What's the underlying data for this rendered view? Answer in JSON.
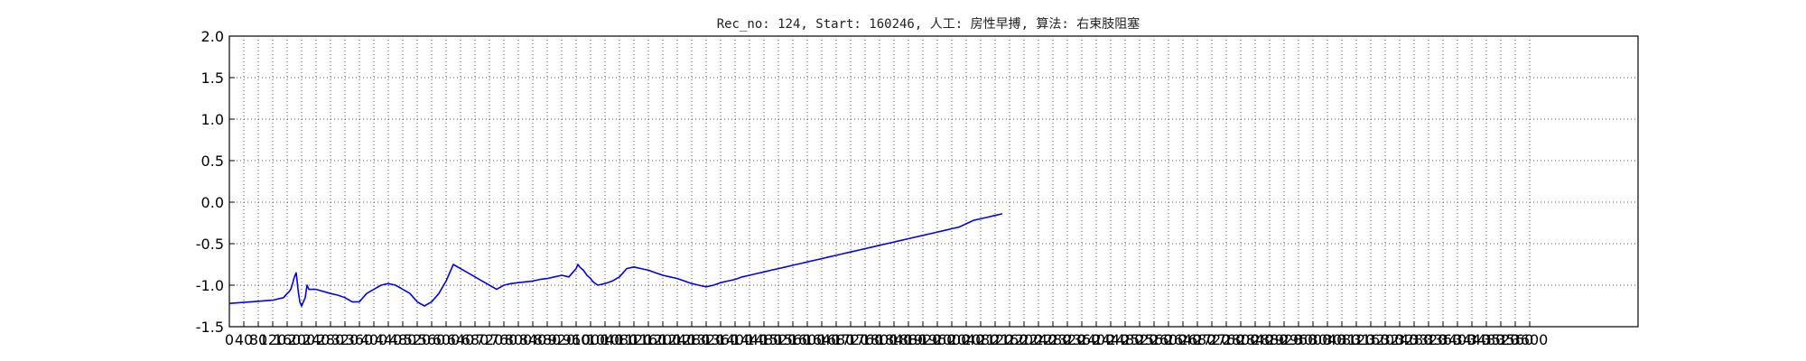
{
  "chart_data": {
    "type": "line",
    "title": "Rec_no: 124, Start: 160246, 人工: 房性早搏, 算法: 右束肢阻塞",
    "xlabel": "",
    "ylabel": "",
    "xlim": [
      0,
      3900
    ],
    "ylim": [
      -1.5,
      2.0
    ],
    "grid": true,
    "ytick_labels": [
      "2.0",
      "1.5",
      "1.0",
      "0.5",
      "0.0",
      "-0.5",
      "-1.0",
      "-1.5"
    ],
    "yticks": [
      2.0,
      1.5,
      1.0,
      0.5,
      0.0,
      -0.5,
      -1.0,
      -1.5
    ],
    "xticks": [
      0,
      40,
      80,
      120,
      160,
      200,
      240,
      280,
      320,
      360,
      400,
      440,
      480,
      520,
      560,
      600,
      640,
      680,
      720,
      760,
      800,
      840,
      880,
      920,
      960,
      1000,
      1040,
      1080,
      1120,
      1160,
      1200,
      1240,
      1280,
      1320,
      1360,
      1400,
      1440,
      1480,
      1520,
      1560,
      1600,
      1640,
      1680,
      1720,
      1760,
      1800,
      1840,
      1880,
      1920,
      1960,
      2000,
      2040,
      2080,
      2120,
      2160,
      2200,
      2240,
      2280,
      2320,
      2360,
      2400,
      2440,
      2480,
      2520,
      2560,
      2600,
      2640,
      2680,
      2720,
      2760,
      2800,
      2840,
      2880,
      2920,
      2960,
      3000,
      3040,
      3080,
      3120,
      3160,
      3200,
      3240,
      3280,
      3320,
      3360,
      3400,
      3440,
      3480,
      3520,
      3560,
      3600
    ],
    "xtick_labels": [
      "0",
      "40",
      "80",
      "120",
      "160",
      "200",
      "240",
      "280",
      "320",
      "360",
      "400",
      "440",
      "480",
      "520",
      "560",
      "600",
      "640",
      "680",
      "720",
      "760",
      "800",
      "840",
      "880",
      "920",
      "960",
      "1000",
      "1040",
      "1080",
      "1120",
      "1160",
      "1200",
      "1240",
      "1280",
      "1320",
      "1360",
      "1400",
      "1440",
      "1480",
      "1520",
      "1560",
      "1600",
      "1640",
      "1680",
      "1720",
      "1760",
      "1800",
      "1840",
      "1880",
      "1920",
      "1960",
      "2000",
      "2040",
      "2080",
      "2120",
      "2160",
      "2200",
      "2240",
      "2280",
      "2320",
      "2360",
      "2400",
      "2440",
      "2480",
      "2520",
      "2560",
      "2600",
      "2640",
      "2680",
      "2720",
      "2760",
      "2800",
      "2840",
      "2880",
      "2920",
      "2960",
      "3000",
      "3040",
      "3080",
      "3120",
      "3160",
      "3200",
      "3240",
      "3280",
      "3320",
      "3360",
      "3400",
      "3440",
      "3480",
      "3520",
      "3560",
      "3600"
    ],
    "colors": {
      "normal": "#0000ff",
      "highlight": "#ff0000",
      "grid": "#555555"
    },
    "series": [
      {
        "color": "#0000ff",
        "x": [
          0,
          60,
          120,
          150,
          160,
          165,
          170,
          175,
          180,
          185,
          190,
          195,
          200,
          205,
          210,
          215,
          220,
          240,
          280,
          300,
          320,
          340,
          360,
          380,
          400,
          420,
          440,
          460,
          480,
          500,
          520,
          540,
          560,
          580,
          600,
          620,
          640,
          660,
          680,
          700,
          720,
          740,
          760,
          780,
          800,
          820,
          840,
          860,
          880,
          900,
          920,
          940,
          950,
          960,
          965,
          970,
          975,
          980,
          985,
          990,
          995,
          1000,
          1005,
          1010,
          1020,
          1040,
          1060,
          1080,
          1100,
          1120,
          1140,
          1160,
          1180,
          1200,
          1220,
          1240,
          1260,
          1280,
          1300,
          1320,
          1340,
          1360,
          1380,
          1400,
          1420,
          1440,
          1460,
          1480,
          1500,
          1520,
          1540,
          1560,
          1580,
          1600,
          1620,
          1640,
          1660,
          1680,
          1700,
          1720,
          1740,
          1760,
          1780,
          1800,
          1820,
          1840,
          1860,
          1880,
          1900,
          1920,
          1940,
          1960,
          1980,
          2000,
          2020,
          2030,
          2040,
          2050,
          2060,
          2080,
          2100,
          2120,
          2140
        ],
        "y": [
          -1.22,
          -1.2,
          -1.18,
          -1.15,
          -1.1,
          -1.08,
          -1.05,
          -0.98,
          -0.9,
          -0.85,
          -1.05,
          -1.2,
          -1.25,
          -1.2,
          -1.15,
          -1.0,
          -1.05,
          -1.05,
          -1.1,
          -1.12,
          -1.15,
          -1.2,
          -1.2,
          -1.1,
          -1.05,
          -1.0,
          -0.98,
          -1.0,
          -1.05,
          -1.1,
          -1.2,
          -1.25,
          -1.2,
          -1.1,
          -0.95,
          -0.75,
          -0.8,
          -0.85,
          -0.9,
          -0.95,
          -1.0,
          -1.05,
          -1.0,
          -0.98,
          -0.97,
          -0.96,
          -0.95,
          -0.93,
          -0.92,
          -0.9,
          -0.88,
          -0.9,
          -0.85,
          -0.8,
          -0.75,
          -0.78,
          -0.8,
          -0.82,
          -0.85,
          -0.88,
          -0.9,
          -0.92,
          -0.95,
          -0.97,
          -1.0,
          -0.98,
          -0.95,
          -0.9,
          -0.8,
          -0.78,
          -0.8,
          -0.82,
          -0.85,
          -0.88,
          -0.9,
          -0.92,
          -0.95,
          -0.98,
          -1.0,
          -1.02,
          -1.0,
          -0.97,
          -0.95,
          -0.93,
          -0.9,
          -0.88,
          -0.86,
          -0.84,
          -0.82,
          -0.8,
          -0.78,
          -0.76,
          -0.74,
          -0.72,
          -0.7,
          -0.68,
          -0.66,
          -0.64,
          -0.62,
          -0.6,
          -0.58,
          -0.56,
          -0.54,
          -0.52,
          -0.5,
          -0.48,
          -0.46,
          -0.44,
          -0.42,
          -0.4,
          -0.38,
          -0.36,
          -0.34,
          -0.32,
          -0.3,
          -0.28,
          -0.26,
          -0.24,
          -0.22,
          -0.2,
          -0.18,
          -0.16,
          -0.14
        ]
      }
    ]
  }
}
